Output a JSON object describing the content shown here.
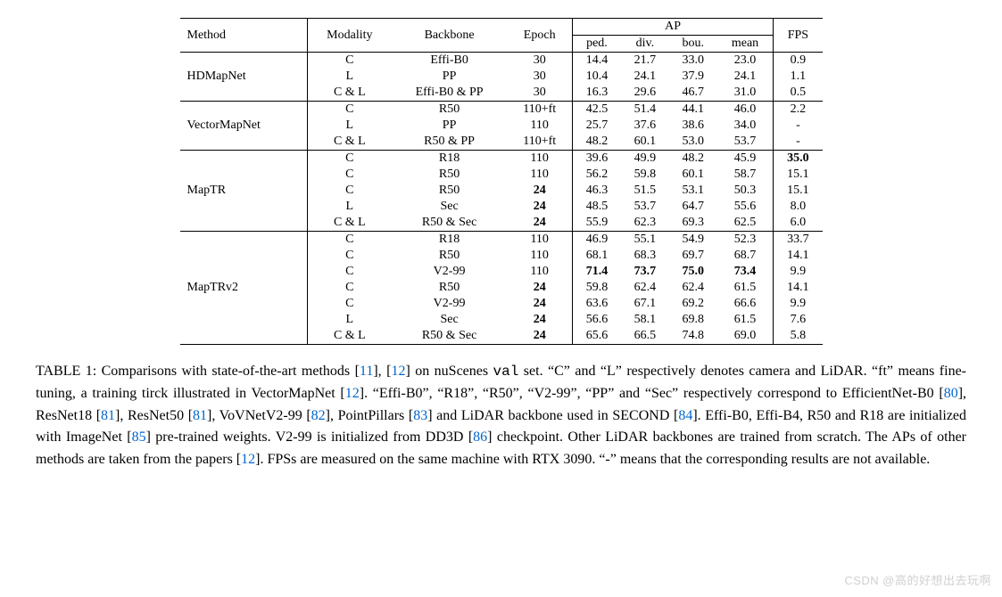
{
  "table": {
    "header": {
      "method": "Method",
      "modality": "Modality",
      "backbone": "Backbone",
      "epoch": "Epoch",
      "ap_group": "AP",
      "ped": "ped.",
      "div": "div.",
      "bou": "bou.",
      "mean": "mean",
      "fps": "FPS"
    },
    "groups": [
      {
        "method": "HDMapNet",
        "rows": [
          {
            "modality": "C",
            "backbone": "Effi-B0",
            "epoch": "30",
            "ped": "14.4",
            "div": "21.7",
            "bou": "33.0",
            "mean": "23.0",
            "fps": "0.9"
          },
          {
            "modality": "L",
            "backbone": "PP",
            "epoch": "30",
            "ped": "10.4",
            "div": "24.1",
            "bou": "37.9",
            "mean": "24.1",
            "fps": "1.1"
          },
          {
            "modality": "C & L",
            "backbone": "Effi-B0 & PP",
            "epoch": "30",
            "ped": "16.3",
            "div": "29.6",
            "bou": "46.7",
            "mean": "31.0",
            "fps": "0.5"
          }
        ]
      },
      {
        "method": "VectorMapNet",
        "rows": [
          {
            "modality": "C",
            "backbone": "R50",
            "epoch": "110+ft",
            "ped": "42.5",
            "div": "51.4",
            "bou": "44.1",
            "mean": "46.0",
            "fps": "2.2"
          },
          {
            "modality": "L",
            "backbone": "PP",
            "epoch": "110",
            "ped": "25.7",
            "div": "37.6",
            "bou": "38.6",
            "mean": "34.0",
            "fps": "-"
          },
          {
            "modality": "C & L",
            "backbone": "R50 & PP",
            "epoch": "110+ft",
            "ped": "48.2",
            "div": "60.1",
            "bou": "53.0",
            "mean": "53.7",
            "fps": "-"
          }
        ]
      },
      {
        "method": "MapTR",
        "rows": [
          {
            "modality": "C",
            "backbone": "R18",
            "epoch": "110",
            "ped": "39.6",
            "div": "49.9",
            "bou": "48.2",
            "mean": "45.9",
            "fps": "35.0",
            "fps_bold": true
          },
          {
            "modality": "C",
            "backbone": "R50",
            "epoch": "110",
            "ped": "56.2",
            "div": "59.8",
            "bou": "60.1",
            "mean": "58.7",
            "fps": "15.1"
          },
          {
            "modality": "C",
            "backbone": "R50",
            "epoch": "24",
            "epoch_bold": true,
            "ped": "46.3",
            "div": "51.5",
            "bou": "53.1",
            "mean": "50.3",
            "fps": "15.1"
          },
          {
            "modality": "L",
            "backbone": "Sec",
            "epoch": "24",
            "epoch_bold": true,
            "ped": "48.5",
            "div": "53.7",
            "bou": "64.7",
            "mean": "55.6",
            "fps": "8.0"
          },
          {
            "modality": "C & L",
            "backbone": "R50 & Sec",
            "epoch": "24",
            "epoch_bold": true,
            "ped": "55.9",
            "div": "62.3",
            "bou": "69.3",
            "mean": "62.5",
            "fps": "6.0"
          }
        ]
      },
      {
        "method": "MapTRv2",
        "rows": [
          {
            "modality": "C",
            "backbone": "R18",
            "epoch": "110",
            "ped": "46.9",
            "div": "55.1",
            "bou": "54.9",
            "mean": "52.3",
            "fps": "33.7"
          },
          {
            "modality": "C",
            "backbone": "R50",
            "epoch": "110",
            "ped": "68.1",
            "div": "68.3",
            "bou": "69.7",
            "mean": "68.7",
            "fps": "14.1"
          },
          {
            "modality": "C",
            "backbone": "V2-99",
            "epoch": "110",
            "ped": "71.4",
            "ped_bold": true,
            "div": "73.7",
            "div_bold": true,
            "bou": "75.0",
            "bou_bold": true,
            "mean": "73.4",
            "mean_bold": true,
            "fps": "9.9"
          },
          {
            "modality": "C",
            "backbone": "R50",
            "epoch": "24",
            "epoch_bold": true,
            "ped": "59.8",
            "div": "62.4",
            "bou": "62.4",
            "mean": "61.5",
            "fps": "14.1"
          },
          {
            "modality": "C",
            "backbone": "V2-99",
            "epoch": "24",
            "epoch_bold": true,
            "ped": "63.6",
            "div": "67.1",
            "bou": "69.2",
            "mean": "66.6",
            "fps": "9.9"
          },
          {
            "modality": "L",
            "backbone": "Sec",
            "epoch": "24",
            "epoch_bold": true,
            "ped": "56.6",
            "div": "58.1",
            "bou": "69.8",
            "mean": "61.5",
            "fps": "7.6"
          },
          {
            "modality": "C & L",
            "backbone": "R50 & Sec",
            "epoch": "24",
            "epoch_bold": true,
            "ped": "65.6",
            "div": "66.5",
            "bou": "74.8",
            "mean": "69.0",
            "fps": "5.8"
          }
        ]
      }
    ],
    "col_widths": {
      "method": 120,
      "modality": 80,
      "backbone": 110,
      "epoch": 70,
      "ap_col": 55,
      "fps": 55
    }
  },
  "caption": {
    "label": "TABLE 1:",
    "text_parts": [
      " Comparisons with state-of-the-art methods [",
      {
        "ref": "11"
      },
      "], [",
      {
        "ref": "12"
      },
      "] on nuScenes ",
      {
        "mono": "val"
      },
      " set. “C” and “L” respectively denotes camera and LiDAR. “ft” means fine-tuning, a training tirck illustrated in VectorMapNet [",
      {
        "ref": "12"
      },
      "]. “Effi-B0”, “R18”, “R50”, “V2-99”, “PP” and “Sec” respectively correspond to EfficientNet-B0 [",
      {
        "ref": "80"
      },
      "], ResNet18 [",
      {
        "ref": "81"
      },
      "], ResNet50 [",
      {
        "ref": "81"
      },
      "], VoVNetV2-99 [",
      {
        "ref": "82"
      },
      "], PointPillars [",
      {
        "ref": "83"
      },
      "] and LiDAR backbone used in SECOND [",
      {
        "ref": "84"
      },
      "]. Effi-B0, Effi-B4, R50 and R18 are initialized with ImageNet [",
      {
        "ref": "85"
      },
      "] pre-trained weights. V2-99 is initialized from DD3D [",
      {
        "ref": "86"
      },
      "] checkpoint. Other LiDAR backbones are trained from scratch. The APs of other methods are taken from the papers [",
      {
        "ref": "12"
      },
      "]. FPSs are measured on the same machine with RTX 3090. “-” means that the corresponding results are not available."
    ]
  },
  "watermark": "CSDN @高的好想出去玩啊",
  "colors": {
    "text": "#000000",
    "ref": "#0066cc",
    "watermark": "#d0d0d0",
    "background": "#ffffff"
  }
}
